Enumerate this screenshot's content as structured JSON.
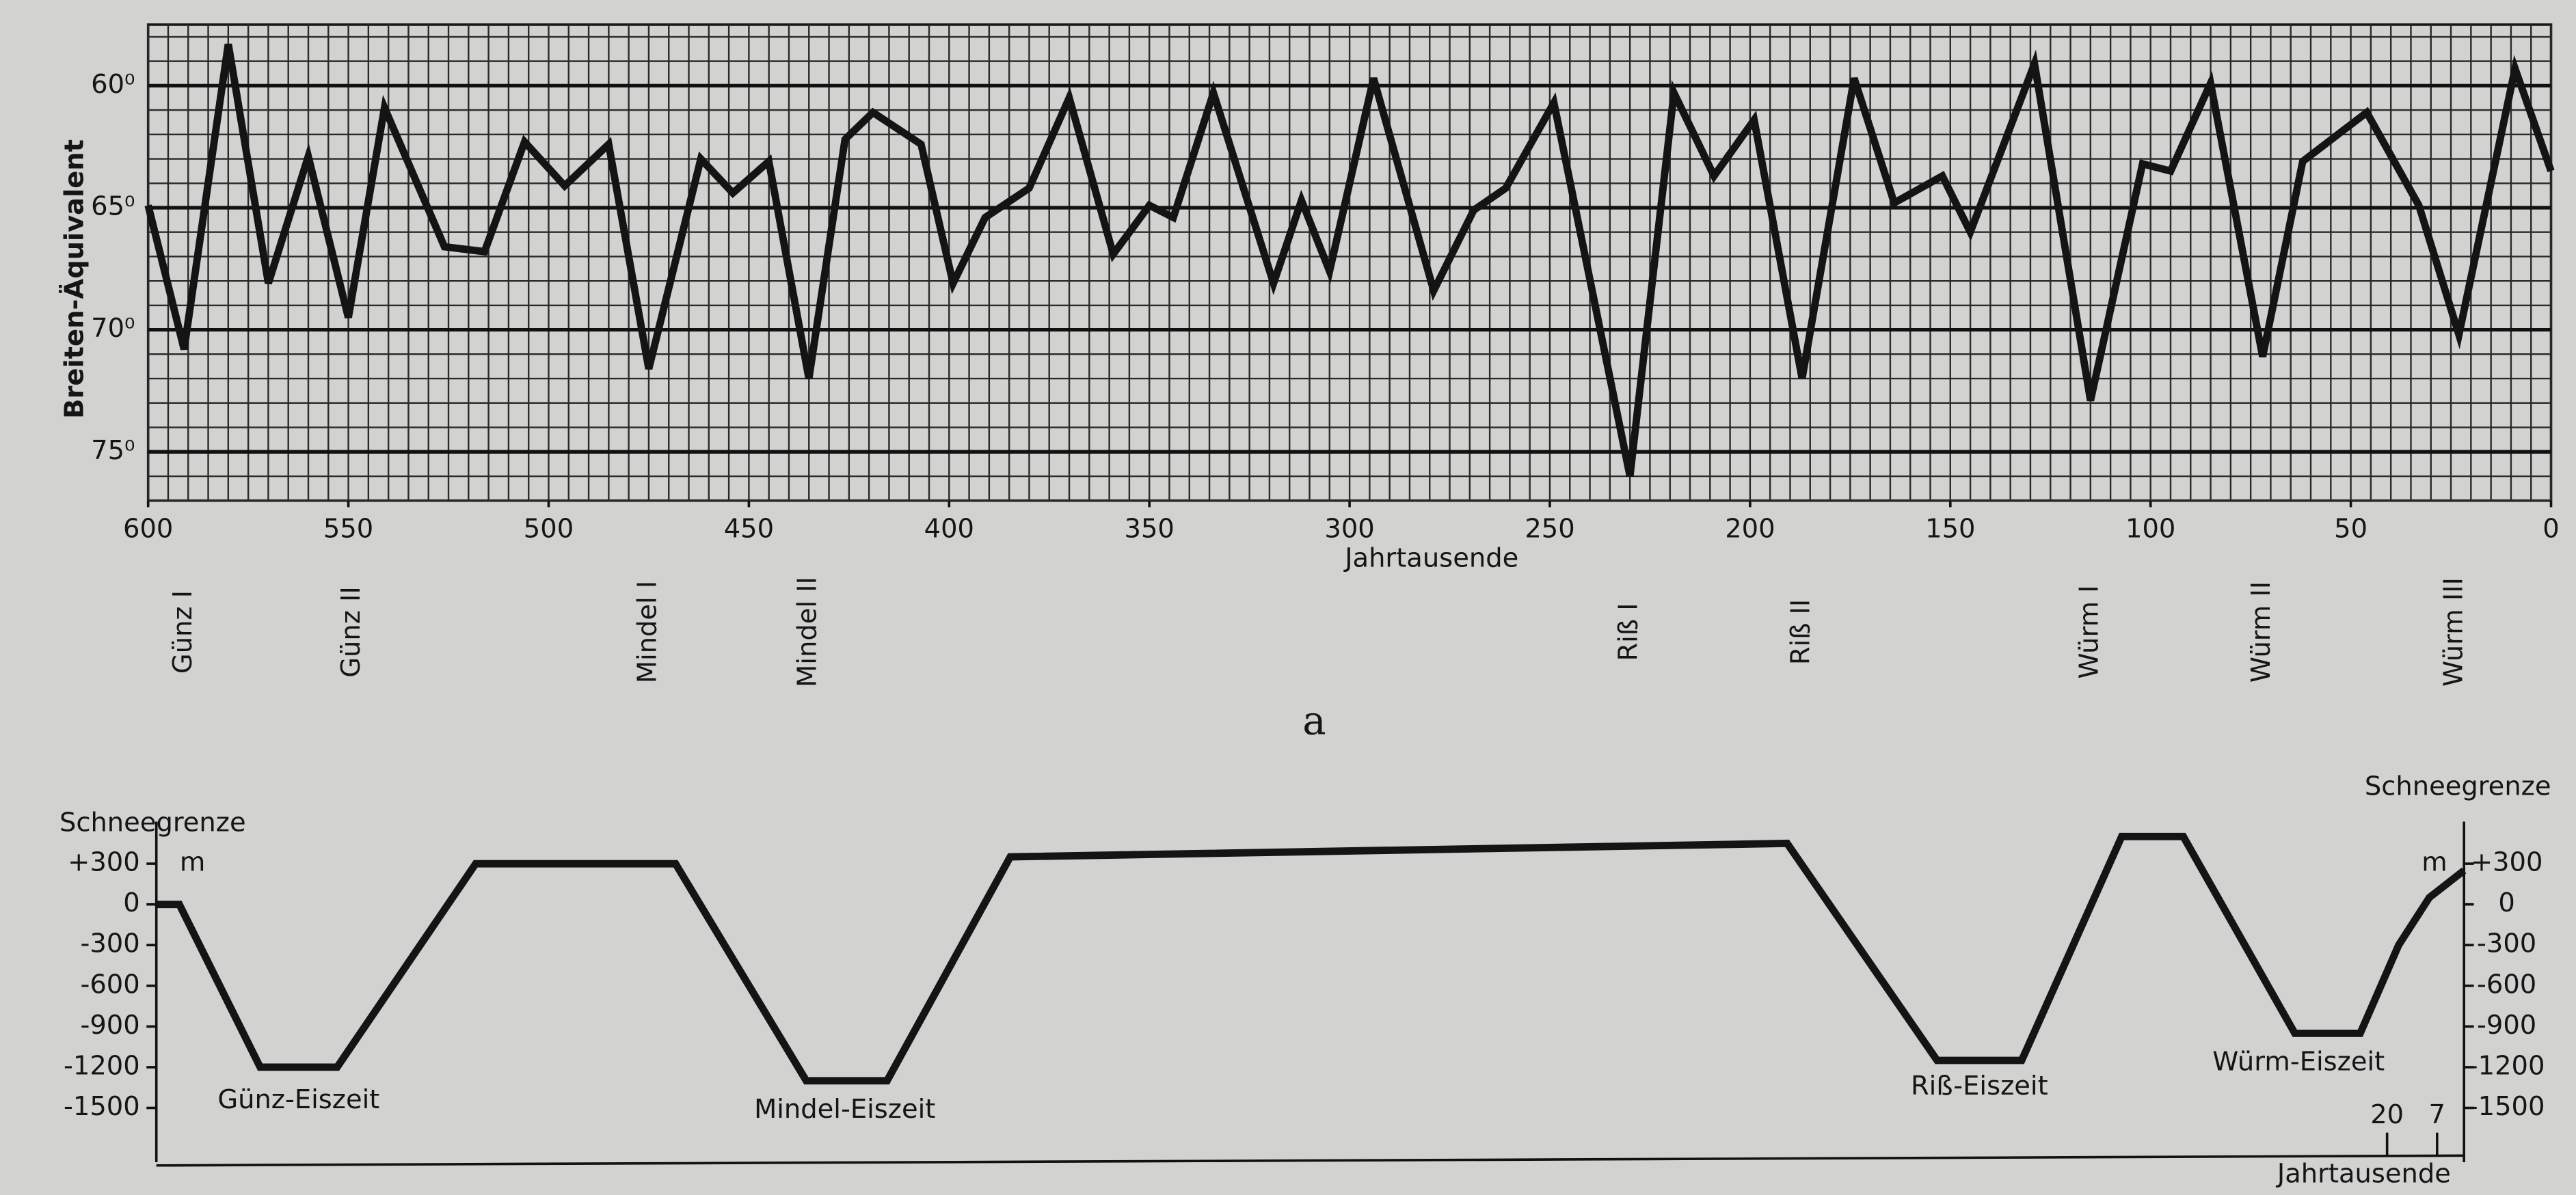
{
  "panel_label": "a",
  "chart_data": [
    {
      "type": "line",
      "ylabel": "Breiten-Äquivalent",
      "xlabel": "Jahrtausende",
      "xlim": [
        600,
        0
      ],
      "xticks": [
        600,
        550,
        500,
        450,
        400,
        350,
        300,
        250,
        200,
        150,
        100,
        50,
        0
      ],
      "ylim": [
        57.5,
        77
      ],
      "invert_y": true,
      "yticks": [
        {
          "value": 60,
          "label": "60⁰"
        },
        {
          "value": 65,
          "label": "65⁰"
        },
        {
          "value": 70,
          "label": "70⁰"
        },
        {
          "value": 75,
          "label": "75⁰"
        }
      ],
      "grid": true,
      "x_minor_step": 5,
      "y_minor_step": 1,
      "x": [
        600,
        591,
        580,
        570,
        560,
        550,
        541,
        526,
        516,
        506,
        496,
        485,
        475,
        462,
        454,
        445,
        435,
        426,
        419,
        407,
        399,
        391,
        380,
        370,
        359,
        350,
        344,
        334,
        319,
        312,
        305,
        294,
        279,
        269,
        261,
        249,
        230,
        219,
        209,
        199,
        187,
        174,
        164,
        152,
        145,
        129,
        115,
        102,
        95,
        85,
        72,
        62,
        46,
        33,
        23,
        9,
        0
      ],
      "series": [
        {
          "color": "#141414",
          "values": [
            64.9,
            70.8,
            58.3,
            68.1,
            62.9,
            69.5,
            60.9,
            66.6,
            66.8,
            62.3,
            64.1,
            62.4,
            71.6,
            63.0,
            64.4,
            63.1,
            72.0,
            62.2,
            61.1,
            62.4,
            68.1,
            65.4,
            64.2,
            60.5,
            66.9,
            64.9,
            65.4,
            60.3,
            68.1,
            64.7,
            67.6,
            59.7,
            68.4,
            65.1,
            64.2,
            60.7,
            76.0,
            60.3,
            63.7,
            61.4,
            72.0,
            59.7,
            64.8,
            63.7,
            66.0,
            59.1,
            72.9,
            63.2,
            63.5,
            59.9,
            71.1,
            63.1,
            61.1,
            64.9,
            70.2,
            59.3,
            63.5
          ]
        }
      ],
      "annotations": [
        {
          "text": "Günz I",
          "x": 591
        },
        {
          "text": "Günz II",
          "x": 549
        },
        {
          "text": "Mindel I",
          "x": 475
        },
        {
          "text": "Mindel II",
          "x": 435
        },
        {
          "text": "Riß I",
          "x": 230
        },
        {
          "text": "Riß II",
          "x": 187
        },
        {
          "text": "Würm I",
          "x": 115
        },
        {
          "text": "Würm II",
          "x": 72
        },
        {
          "text": "Würm III",
          "x": 24
        }
      ]
    },
    {
      "type": "line",
      "ylabel": "Schneegrenze",
      "yunit": "m",
      "xlabel": "Jahrtausende",
      "xlim": [
        600,
        0
      ],
      "xticks": [
        20,
        7
      ],
      "ylim": [
        -1900,
        550
      ],
      "yticks": [
        {
          "value": 300,
          "label": "+300"
        },
        0,
        -300,
        -600,
        -900,
        -1200,
        -1500
      ],
      "x": [
        600,
        594,
        573,
        553,
        517,
        465,
        431,
        410,
        378,
        176,
        137,
        115,
        89,
        73,
        44,
        27,
        17,
        9,
        0
      ],
      "series": [
        {
          "color": "#141414",
          "values": [
            0,
            0,
            -1200,
            -1200,
            300,
            300,
            -1300,
            -1300,
            350,
            450,
            -1150,
            -1150,
            500,
            500,
            -950,
            -950,
            -300,
            50,
            250
          ]
        }
      ],
      "annotations": [
        {
          "text": "Günz-Eiszeit",
          "x": 563,
          "y": -1450
        },
        {
          "text": "Mindel-Eiszeit",
          "x": 421,
          "y": -1520
        },
        {
          "text": "Riß-Eiszeit",
          "x": 126,
          "y": -1350
        },
        {
          "text": "Würm-Eiszeit",
          "x": 43,
          "y": -1170
        }
      ]
    }
  ]
}
